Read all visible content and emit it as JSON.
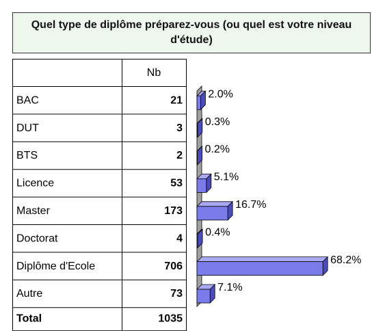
{
  "chart_data": {
    "type": "bar",
    "title": "Quel type de diplôme préparez-vous (ou quel est votre niveau d'étude)",
    "column_header": "Nb",
    "categories": [
      "BAC",
      "DUT",
      "BTS",
      "Licence",
      "Master",
      "Doctorat",
      "Diplôme d'Ecole",
      "Autre"
    ],
    "counts": [
      21,
      3,
      2,
      53,
      173,
      4,
      706,
      73
    ],
    "values": [
      2.0,
      0.3,
      0.2,
      5.1,
      16.7,
      0.4,
      68.2,
      7.1
    ],
    "value_labels": [
      "2.0%",
      "0.3%",
      "0.2%",
      "5.1%",
      "16.7%",
      "0.4%",
      "68.2%",
      "7.1%"
    ],
    "total_label": "Total",
    "total": 1035,
    "color": "#7b7bea"
  }
}
